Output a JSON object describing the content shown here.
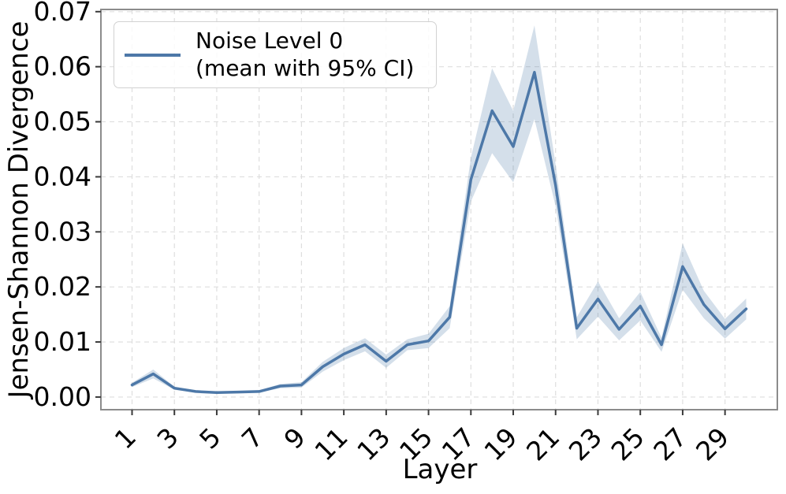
{
  "chart_data": {
    "type": "line",
    "xlabel": "Layer",
    "ylabel": "Jensen-Shannon Divergence",
    "x": [
      1,
      2,
      3,
      4,
      5,
      6,
      7,
      8,
      9,
      10,
      11,
      12,
      13,
      14,
      15,
      16,
      17,
      18,
      19,
      20,
      21,
      22,
      23,
      24,
      25,
      26,
      27,
      28,
      29,
      30
    ],
    "series": [
      {
        "name": "Noise Level 0 (mean with 95% CI)",
        "mean": [
          0.0022,
          0.0042,
          0.0016,
          0.001,
          0.0008,
          0.0009,
          0.001,
          0.002,
          0.0022,
          0.0055,
          0.0078,
          0.0095,
          0.0065,
          0.0095,
          0.0102,
          0.0145,
          0.0395,
          0.052,
          0.0455,
          0.059,
          0.0385,
          0.0125,
          0.0178,
          0.0123,
          0.0165,
          0.0095,
          0.0237,
          0.0168,
          0.0124,
          0.016
        ],
        "ci_low": [
          0.0018,
          0.0034,
          0.0013,
          0.0008,
          0.0006,
          0.0007,
          0.0008,
          0.0016,
          0.0017,
          0.0046,
          0.0067,
          0.0083,
          0.0053,
          0.0085,
          0.0089,
          0.0125,
          0.0355,
          0.0443,
          0.039,
          0.0505,
          0.0347,
          0.0105,
          0.0146,
          0.0103,
          0.0139,
          0.0082,
          0.0195,
          0.0143,
          0.0106,
          0.0141
        ],
        "ci_high": [
          0.0026,
          0.005,
          0.0019,
          0.0012,
          0.001,
          0.0011,
          0.0012,
          0.0024,
          0.0027,
          0.0064,
          0.0089,
          0.0107,
          0.0077,
          0.0105,
          0.0115,
          0.0165,
          0.0435,
          0.0597,
          0.052,
          0.0675,
          0.0423,
          0.0145,
          0.021,
          0.0143,
          0.0191,
          0.0108,
          0.0279,
          0.0193,
          0.0142,
          0.0179
        ]
      }
    ],
    "xticks": [
      1,
      3,
      5,
      7,
      9,
      11,
      13,
      15,
      17,
      19,
      21,
      23,
      25,
      27,
      29
    ],
    "xtick_labels": [
      "1",
      "3",
      "5",
      "7",
      "9",
      "11",
      "13",
      "15",
      "17",
      "19",
      "21",
      "23",
      "25",
      "27",
      "29"
    ],
    "yticks": [
      0.0,
      0.01,
      0.02,
      0.03,
      0.04,
      0.05,
      0.06,
      0.07
    ],
    "ytick_labels": [
      "0.00",
      "0.01",
      "0.02",
      "0.03",
      "0.04",
      "0.05",
      "0.06",
      "0.07"
    ],
    "xlim": [
      -0.47,
      31.47
    ],
    "ylim": [
      -0.0023,
      0.0704
    ],
    "grid": true,
    "legend": {
      "position": "upper-left",
      "line1": "Noise Level 0",
      "line2": "(mean with 95% CI)"
    },
    "colors": {
      "line": "#4d78a8",
      "band": "rgba(77,120,168,0.24)",
      "grid": "#dedede",
      "spine": "#8c8c8c",
      "tick": "#3a3a3a",
      "text": "#000000"
    }
  }
}
